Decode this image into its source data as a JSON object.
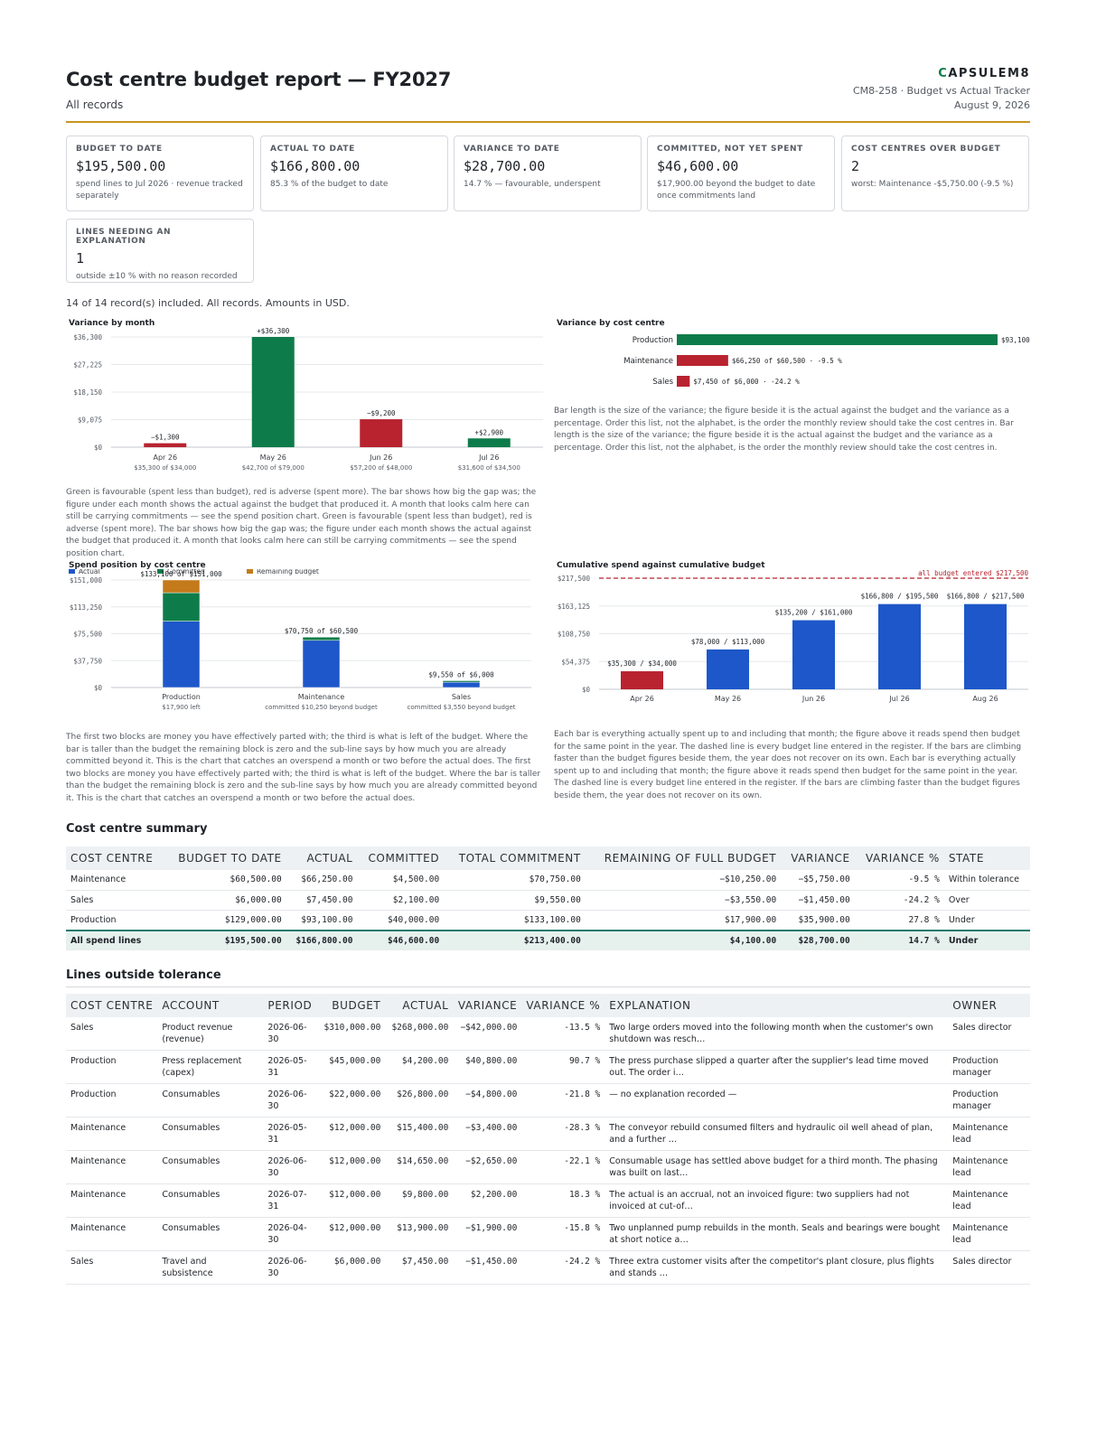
{
  "header": {
    "title": "Cost centre budget report — FY2027",
    "subtitle": "All records",
    "brand_c": "C",
    "brand_rest": "APSULEM8",
    "ref": "CM8-258 · Budget vs Actual Tracker",
    "date": "August 9, 2026"
  },
  "kpis": [
    {
      "label": "Budget to date",
      "value": "$195,500.00",
      "note": "spend lines to Jul 2026 · revenue tracked separately"
    },
    {
      "label": "Actual to date",
      "value": "$166,800.00",
      "note": "85.3 % of the budget to date"
    },
    {
      "label": "Variance to date",
      "value": "$28,700.00",
      "note": "14.7 % — favourable, underspent"
    },
    {
      "label": "Committed, not yet spent",
      "value": "$46,600.00",
      "note": "$17,900.00 beyond the budget to date once commitments land"
    },
    {
      "label": "Cost centres over budget",
      "value": "2",
      "note": "worst: Maintenance -$5,750.00 (-9.5 %)"
    },
    {
      "label": "Lines needing an explanation",
      "value": "1",
      "note": "outside ±10 % with no reason recorded"
    }
  ],
  "included": "14 of 14 record(s) included. All records. Amounts in USD.",
  "charts": {
    "variance_month": {
      "title": "Variance by month",
      "caption": "Green is favourable (spent less than budget), red is adverse (spent more). The bar shows how big the gap was; the figure under each month shows the actual against the budget that produced it. A month that looks calm here can still be carrying commitments — see the spend position chart. Green is favourable (spent less than budget), red is adverse (spent more). The bar shows how big the gap was; the figure under each month shows the actual against the budget that produced it. A month that looks calm here can still be carrying commitments — see the spend position chart."
    },
    "variance_centre": {
      "title": "Variance by cost centre",
      "caption": "Bar length is the size of the variance; the figure beside it is the actual against the budget and the variance as a percentage. Order this list, not the alphabet, is the order the monthly review should take the cost centres in. Bar length is the size of the variance; the figure beside it is the actual against the budget and the variance as a percentage. Order this list, not the alphabet, is the order the monthly review should take the cost centres in."
    },
    "spend_position": {
      "title": "Spend position by cost centre",
      "caption": "The first two blocks are money you have effectively parted with; the third is what is left of the budget. Where the bar is taller than the budget the remaining block is zero and the sub-line says by how much you are already committed beyond it. This is the chart that catches an overspend a month or two before the actual does. The first two blocks are money you have effectively parted with; the third is what is left of the budget. Where the bar is taller than the budget the remaining block is zero and the sub-line says by how much you are already committed beyond it. This is the chart that catches an overspend a month or two before the actual does."
    },
    "cumulative": {
      "title": "Cumulative spend against cumulative budget",
      "caption": "Each bar is everything actually spent up to and including that month; the figure above it reads spend then budget for the same point in the year. The dashed line is every budget line entered in the register. If the bars are climbing faster than the budget figures beside them, the year does not recover on its own. Each bar is everything actually spent up to and including that month; the figure above it reads spend then budget for the same point in the year. The dashed line is every budget line entered in the register. If the bars are climbing faster than the budget figures beside them, the year does not recover on its own."
    }
  },
  "chart_data": [
    {
      "type": "bar",
      "title": "Variance by month",
      "categories": [
        "Apr 26",
        "May 26",
        "Jun 26",
        "Jul 26"
      ],
      "values": [
        -1300,
        36300,
        -9200,
        2900
      ],
      "value_labels": [
        "−$1,300",
        "+$36,300",
        "−$9,200",
        "+$2,900"
      ],
      "sublabels": [
        "$35,300 of $34,000",
        "$42,700 of $79,000",
        "$57,200 of $48,000",
        "$31,600 of $34,500"
      ],
      "yticks": [
        "$0",
        "$9,075",
        "$18,150",
        "$27,225",
        "$36,300"
      ],
      "ylim": [
        0,
        36300
      ],
      "colors": {
        "favourable": "#0e7c4a",
        "adverse": "#b8232f"
      }
    },
    {
      "type": "bar",
      "orientation": "horizontal",
      "title": "Variance by cost centre",
      "categories": [
        "Production",
        "Maintenance",
        "Sales"
      ],
      "values": [
        35900,
        -5750,
        -1450
      ],
      "labels": [
        "$93,100",
        "$66,250 of $60,500 · -9.5 %",
        "$7,450 of $6,000 · -24.2 %"
      ],
      "colors": {
        "favourable": "#0e7c4a",
        "adverse": "#b8232f"
      }
    },
    {
      "type": "bar",
      "stacked": true,
      "title": "Spend position by cost centre",
      "categories": [
        "Production",
        "Maintenance",
        "Sales"
      ],
      "series": [
        {
          "name": "Actual",
          "values": [
            93100,
            66250,
            7450
          ],
          "color": "#1d57c9"
        },
        {
          "name": "Committed",
          "values": [
            40000,
            4500,
            2100
          ],
          "color": "#0e7c4a"
        },
        {
          "name": "Remaining budget",
          "values": [
            17900,
            0,
            0
          ],
          "color": "#c47a1a"
        }
      ],
      "top_labels": [
        "$133,100 of $151,000",
        "$70,750 of $60,500",
        "$9,550 of $6,000"
      ],
      "sublabels": [
        "$17,900 left",
        "committed $10,250 beyond budget",
        "committed $3,550 beyond budget"
      ],
      "yticks": [
        "$0",
        "$37,750",
        "$75,500",
        "$113,250",
        "$151,000"
      ],
      "ylim": [
        0,
        151000
      ],
      "legend": "top-left"
    },
    {
      "type": "bar",
      "title": "Cumulative spend against cumulative budget",
      "categories": [
        "Apr 26",
        "May 26",
        "Jun 26",
        "Jul 26",
        "Aug 26"
      ],
      "values": [
        35300,
        78000,
        135200,
        166800,
        166800
      ],
      "budget": [
        34000,
        113000,
        161000,
        195500,
        217500
      ],
      "labels": [
        "$35,300 / $34,000",
        "$78,000 / $113,000",
        "$135,200 / $161,000",
        "$166,800 / $195,500",
        "$166,800 / $217,500"
      ],
      "reference_line": {
        "value": 217500,
        "label": "all budget entered $217,500"
      },
      "yticks": [
        "$0",
        "$54,375",
        "$108,750",
        "$163,125",
        "$217,500"
      ],
      "ylim": [
        0,
        217500
      ],
      "colors": {
        "over": "#b8232f",
        "under": "#1d57c9"
      }
    }
  ],
  "summary": {
    "heading": "Cost centre summary",
    "columns": [
      "Cost centre",
      "Budget to date",
      "Actual",
      "Committed",
      "Total commitment",
      "Remaining of full budget",
      "Variance",
      "Variance %",
      "State"
    ],
    "rows": [
      [
        "Maintenance",
        "$60,500.00",
        "$66,250.00",
        "$4,500.00",
        "$70,750.00",
        "−$10,250.00",
        "−$5,750.00",
        "-9.5 %",
        "Within tolerance"
      ],
      [
        "Sales",
        "$6,000.00",
        "$7,450.00",
        "$2,100.00",
        "$9,550.00",
        "−$3,550.00",
        "−$1,450.00",
        "-24.2 %",
        "Over"
      ],
      [
        "Production",
        "$129,000.00",
        "$93,100.00",
        "$40,000.00",
        "$133,100.00",
        "$17,900.00",
        "$35,900.00",
        "27.8 %",
        "Under"
      ]
    ],
    "total": [
      "All spend lines",
      "$195,500.00",
      "$166,800.00",
      "$46,600.00",
      "$213,400.00",
      "$4,100.00",
      "$28,700.00",
      "14.7 %",
      "Under"
    ]
  },
  "tolerance": {
    "heading": "Lines outside tolerance",
    "columns": [
      "Cost centre",
      "Account",
      "Period",
      "Budget",
      "Actual",
      "Variance",
      "Variance %",
      "Explanation",
      "Owner"
    ],
    "rows": [
      [
        "Sales",
        "Product revenue (revenue)",
        "2026-06-30",
        "$310,000.00",
        "$268,000.00",
        "−$42,000.00",
        "-13.5 %",
        "Two large orders moved into the following month when the customer's own shutdown was resch…",
        "Sales director"
      ],
      [
        "Production",
        "Press replacement (capex)",
        "2026-05-31",
        "$45,000.00",
        "$4,200.00",
        "$40,800.00",
        "90.7 %",
        "The press purchase slipped a quarter after the supplier's lead time moved out. The order i…",
        "Production manager"
      ],
      [
        "Production",
        "Consumables",
        "2026-06-30",
        "$22,000.00",
        "$26,800.00",
        "−$4,800.00",
        "-21.8 %",
        "— no explanation recorded —",
        "Production manager"
      ],
      [
        "Maintenance",
        "Consumables",
        "2026-05-31",
        "$12,000.00",
        "$15,400.00",
        "−$3,400.00",
        "-28.3 %",
        "The conveyor rebuild consumed filters and hydraulic oil well ahead of plan, and a further …",
        "Maintenance lead"
      ],
      [
        "Maintenance",
        "Consumables",
        "2026-06-30",
        "$12,000.00",
        "$14,650.00",
        "−$2,650.00",
        "-22.1 %",
        "Consumable usage has settled above budget for a third month. The phasing was built on last…",
        "Maintenance lead"
      ],
      [
        "Maintenance",
        "Consumables",
        "2026-07-31",
        "$12,000.00",
        "$9,800.00",
        "$2,200.00",
        "18.3 %",
        "The actual is an accrual, not an invoiced figure: two suppliers had not invoiced at cut-of…",
        "Maintenance lead"
      ],
      [
        "Maintenance",
        "Consumables",
        "2026-04-30",
        "$12,000.00",
        "$13,900.00",
        "−$1,900.00",
        "-15.8 %",
        "Two unplanned pump rebuilds in the month. Seals and bearings were bought at short notice a…",
        "Maintenance lead"
      ],
      [
        "Sales",
        "Travel and subsistence",
        "2026-06-30",
        "$6,000.00",
        "$7,450.00",
        "−$1,450.00",
        "-24.2 %",
        "Three extra customer visits after the competitor's plant closure, plus flights and stands …",
        "Sales director"
      ]
    ]
  }
}
